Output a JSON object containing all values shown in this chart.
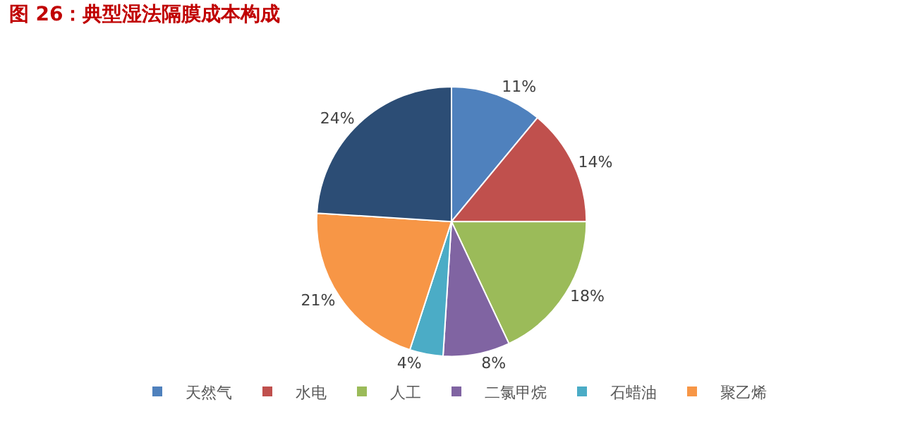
{
  "chart_data": {
    "type": "pie",
    "title": "图 26：典型湿法隔膜成本构成",
    "categories": [
      "天然气",
      "水电",
      "人工",
      "二氯甲烷",
      "石蜡油",
      "聚乙烯",
      null
    ],
    "values": [
      11,
      14,
      18,
      8,
      4,
      21,
      24
    ],
    "value_labels": [
      "11%",
      "14%",
      "18%",
      "8%",
      "4%",
      "21%",
      "24%"
    ],
    "colors": [
      "#4f81bd",
      "#c0504d",
      "#9bbb59",
      "#8064a2",
      "#4bacc6",
      "#f79646",
      "#2c4d75"
    ],
    "legend": "bottom"
  }
}
